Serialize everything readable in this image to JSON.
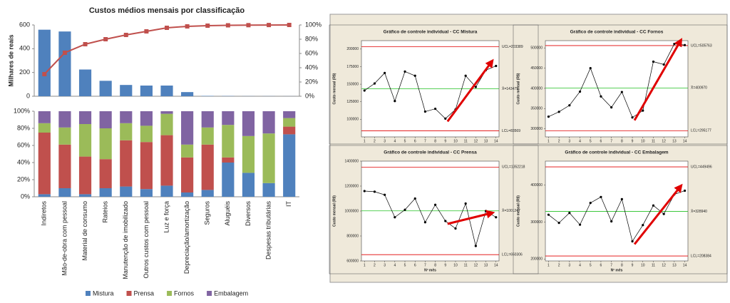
{
  "chart_data": [
    {
      "type": "bar",
      "title": "Custos médios mensais por classificação",
      "ylabel": "Milhares de reais",
      "ylim": [
        0,
        600
      ],
      "yticks": [
        0,
        200,
        400,
        600
      ],
      "y2lim": [
        0,
        100
      ],
      "y2ticks": [
        {
          "value": 0,
          "label": "0%"
        },
        {
          "value": 20,
          "label": "20%"
        },
        {
          "value": 40,
          "label": "40%"
        },
        {
          "value": 60,
          "label": "60%"
        },
        {
          "value": 80,
          "label": "80%"
        },
        {
          "value": 100,
          "label": "100%"
        }
      ],
      "series": [
        {
          "type": "bar",
          "color": "#4f81bd",
          "values": [
            560,
            545,
            225,
            130,
            95,
            90,
            90,
            35,
            3,
            2,
            1,
            1,
            0.5
          ]
        },
        {
          "type": "line",
          "axis": "y2",
          "color": "#c0504d",
          "values": [
            31,
            61,
            73,
            80,
            86,
            91,
            96,
            98,
            99,
            99.5,
            99.7,
            99.9,
            100
          ]
        }
      ]
    },
    {
      "type": "stacked",
      "categories": [
        "Indiretos",
        "Mão-de-obra com pessoal",
        "Material de consumo",
        "Rateios",
        "Manutenção de imobilizado",
        "Outros custos com pessoal",
        "Luz e força",
        "Depreciação/amortização",
        "Seguros",
        "Aluguéis",
        "Diversos",
        "Despesas tributárias",
        "IT"
      ],
      "ylim": [
        0,
        100
      ],
      "yticks": [
        {
          "value": 0,
          "label": "0%"
        },
        {
          "value": 20,
          "label": "20%"
        },
        {
          "value": 40,
          "label": "40%"
        },
        {
          "value": 60,
          "label": "60%"
        },
        {
          "value": 80,
          "label": "80%"
        },
        {
          "value": 100,
          "label": "100%"
        }
      ],
      "series": [
        {
          "name": "Mistura",
          "color": "#4f81bd",
          "values": [
            3,
            10,
            3,
            10,
            12,
            9,
            13,
            5,
            8,
            40,
            28,
            16,
            73
          ]
        },
        {
          "name": "Prensa",
          "color": "#c0504d",
          "values": [
            72,
            51,
            44,
            34,
            54,
            55,
            59,
            41,
            53,
            6,
            0,
            0,
            9
          ]
        },
        {
          "name": "Fornos",
          "color": "#9bbb59",
          "values": [
            11,
            20,
            38,
            36,
            20,
            19,
            25,
            15,
            20,
            38,
            43,
            58,
            10
          ]
        },
        {
          "name": "Embalagem",
          "color": "#8064a2",
          "values": [
            14,
            19,
            15,
            20,
            14,
            17,
            3,
            39,
            19,
            16,
            29,
            26,
            8
          ]
        }
      ]
    },
    {
      "type": "line",
      "title": "Gráfico de controle individual - CC Mistura",
      "ylabel": "Custo mensal (R$)",
      "x": [
        1,
        2,
        3,
        4,
        5,
        6,
        7,
        8,
        9,
        10,
        11,
        12,
        13,
        14
      ],
      "xlim": [
        0.7,
        14.3
      ],
      "ylim": [
        75000,
        212000
      ],
      "yticks": [
        100000,
        125000,
        150000,
        175000,
        200000
      ],
      "values": [
        141000,
        151000,
        166000,
        126000,
        168000,
        162000,
        111000,
        115000,
        101000,
        114000,
        162000,
        146000,
        170000,
        176000
      ],
      "limits": [
        {
          "value": 203389,
          "label": "UCL=203389"
        },
        {
          "value": 143479,
          "label": "X̄=143479"
        },
        {
          "value": 83569,
          "label": "LCL=83569"
        }
      ],
      "limit_colors": [
        "#e00000",
        "#20c020",
        "#e00000"
      ]
    },
    {
      "type": "line",
      "title": "Gráfico de controle individual - CC Fornos",
      "ylabel": "Custo mensal (R$)",
      "x": [
        1,
        2,
        3,
        4,
        5,
        6,
        7,
        8,
        9,
        10,
        11,
        12,
        13,
        14
      ],
      "xlim": [
        0.7,
        14.3
      ],
      "ylim": [
        280000,
        518000
      ],
      "yticks": [
        300000,
        350000,
        400000,
        450000,
        500000
      ],
      "values": [
        330000,
        342000,
        358000,
        392000,
        450000,
        380000,
        353000,
        391000,
        328000,
        345000,
        466000,
        459000,
        510000,
        507000
      ],
      "limits": [
        {
          "value": 505763,
          "label": "UCL=505763"
        },
        {
          "value": 400970,
          "label": "X̄=400970"
        },
        {
          "value": 295177,
          "label": "LCL=295177"
        }
      ],
      "limit_colors": [
        "#e00000",
        "#20c020",
        "#e00000"
      ]
    },
    {
      "type": "line",
      "title": "Gráfico de controle individual - CC Prensa",
      "ylabel": "Custo mensal (R$)",
      "xlabel": "Nº mês",
      "x": [
        1,
        2,
        3,
        4,
        5,
        6,
        7,
        8,
        9,
        10,
        11,
        12,
        13,
        14
      ],
      "xlim": [
        0.7,
        14.3
      ],
      "ylim": [
        600000,
        1400000
      ],
      "yticks": [
        600000,
        800000,
        1000000,
        1200000,
        1400000
      ],
      "values": [
        1160000,
        1155000,
        1130000,
        950000,
        1010000,
        1100000,
        910000,
        1050000,
        920000,
        860000,
        1060000,
        720000,
        1000000,
        950000
      ],
      "limits": [
        {
          "value": 1352218,
          "label": "UCL=1352218"
        },
        {
          "value": 1001247,
          "label": "X̄=1001247"
        },
        {
          "value": 650306,
          "label": "LCL=650306"
        }
      ],
      "limit_colors": [
        "#e00000",
        "#20c020",
        "#e00000"
      ]
    },
    {
      "type": "line",
      "title": "Gráfico de controle individual - CC Embalagem",
      "ylabel": "Custo mensal (R$)",
      "xlabel": "Nº mês",
      "x": [
        1,
        2,
        3,
        4,
        5,
        6,
        7,
        8,
        9,
        10,
        11,
        12,
        13,
        14
      ],
      "xlim": [
        0.7,
        14.3
      ],
      "ylim": [
        195000,
        465000
      ],
      "yticks": [
        200000,
        300000,
        400000
      ],
      "values": [
        320000,
        298000,
        325000,
        293000,
        352000,
        368000,
        302000,
        362000,
        248000,
        292000,
        345000,
        322000,
        375000,
        385000
      ],
      "limits": [
        {
          "value": 449496,
          "label": "UCL=449496"
        },
        {
          "value": 328940,
          "label": "X̄=328940"
        },
        {
          "value": 208384,
          "label": "LCL=208384"
        }
      ],
      "limit_colors": [
        "#e00000",
        "#20c020",
        "#e00000"
      ]
    }
  ]
}
